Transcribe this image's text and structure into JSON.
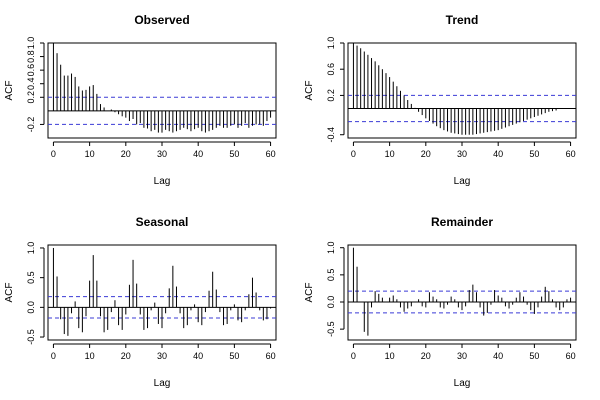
{
  "chart_data": [
    {
      "type": "bar",
      "title": "Observed",
      "xlabel": "Lag",
      "ylabel": "ACF",
      "xlim": [
        -1.5,
        61.5
      ],
      "ylim": [
        -0.4,
        1.0
      ],
      "xticks": [
        0,
        10,
        20,
        30,
        40,
        50,
        60
      ],
      "yticks": [
        -0.2,
        0.2,
        0.4,
        0.6,
        0.8,
        1.0
      ],
      "ytick_labels": [
        "-0.2",
        "0.2",
        "0.4",
        "0.6",
        "0.8",
        "1.0"
      ],
      "conf_band": 0.2,
      "lags": [
        0,
        1,
        2,
        3,
        4,
        5,
        6,
        7,
        8,
        9,
        10,
        11,
        12,
        13,
        14,
        15,
        16,
        17,
        18,
        19,
        20,
        21,
        22,
        23,
        24,
        25,
        26,
        27,
        28,
        29,
        30,
        31,
        32,
        33,
        34,
        35,
        36,
        37,
        38,
        39,
        40,
        41,
        42,
        43,
        44,
        45,
        46,
        47,
        48,
        49,
        50,
        51,
        52,
        53,
        54,
        55,
        56,
        57,
        58,
        59,
        60
      ],
      "values": [
        1.0,
        0.85,
        0.68,
        0.52,
        0.52,
        0.55,
        0.5,
        0.36,
        0.3,
        0.31,
        0.36,
        0.38,
        0.25,
        0.1,
        0.05,
        0.0,
        0.02,
        -0.02,
        -0.05,
        -0.08,
        -0.1,
        -0.15,
        -0.12,
        -0.2,
        -0.18,
        -0.25,
        -0.26,
        -0.3,
        -0.28,
        -0.32,
        -0.32,
        -0.28,
        -0.3,
        -0.32,
        -0.3,
        -0.28,
        -0.25,
        -0.27,
        -0.3,
        -0.27,
        -0.25,
        -0.3,
        -0.32,
        -0.3,
        -0.28,
        -0.25,
        -0.22,
        -0.25,
        -0.25,
        -0.22,
        -0.2,
        -0.25,
        -0.22,
        -0.18,
        -0.25,
        -0.22,
        -0.2,
        -0.2,
        -0.22,
        -0.15,
        -0.1
      ]
    },
    {
      "type": "bar",
      "title": "Trend",
      "xlabel": "Lag",
      "ylabel": "ACF",
      "xlim": [
        -1.5,
        61.5
      ],
      "ylim": [
        -0.45,
        1.0
      ],
      "xticks": [
        0,
        10,
        20,
        30,
        40,
        50,
        60
      ],
      "yticks": [
        -0.4,
        0.2,
        0.6,
        1.0
      ],
      "ytick_labels": [
        "-0.4",
        "0.2",
        "0.6",
        "1.0"
      ],
      "conf_band": 0.2,
      "lags": [
        0,
        1,
        2,
        3,
        4,
        5,
        6,
        7,
        8,
        9,
        10,
        11,
        12,
        13,
        14,
        15,
        16,
        17,
        18,
        19,
        20,
        21,
        22,
        23,
        24,
        25,
        26,
        27,
        28,
        29,
        30,
        31,
        32,
        33,
        34,
        35,
        36,
        37,
        38,
        39,
        40,
        41,
        42,
        43,
        44,
        45,
        46,
        47,
        48,
        49,
        50,
        51,
        52,
        53,
        54,
        55,
        56
      ],
      "values": [
        1.0,
        0.96,
        0.92,
        0.87,
        0.82,
        0.77,
        0.72,
        0.66,
        0.6,
        0.54,
        0.48,
        0.41,
        0.34,
        0.27,
        0.2,
        0.13,
        0.07,
        0.01,
        -0.05,
        -0.1,
        -0.15,
        -0.19,
        -0.23,
        -0.27,
        -0.3,
        -0.33,
        -0.35,
        -0.37,
        -0.38,
        -0.39,
        -0.4,
        -0.4,
        -0.4,
        -0.4,
        -0.39,
        -0.38,
        -0.37,
        -0.36,
        -0.35,
        -0.34,
        -0.33,
        -0.31,
        -0.29,
        -0.27,
        -0.25,
        -0.23,
        -0.21,
        -0.19,
        -0.17,
        -0.15,
        -0.13,
        -0.11,
        -0.09,
        -0.07,
        -0.05,
        -0.04,
        -0.03
      ]
    },
    {
      "type": "bar",
      "title": "Seasonal",
      "xlabel": "Lag",
      "ylabel": "ACF",
      "xlim": [
        -1.5,
        61.5
      ],
      "ylim": [
        -0.55,
        1.05
      ],
      "xticks": [
        0,
        10,
        20,
        30,
        40,
        50,
        60
      ],
      "yticks": [
        -0.5,
        0.0,
        0.5,
        1.0
      ],
      "ytick_labels": [
        "-0.5",
        "0.0",
        "0.5",
        "1.0"
      ],
      "conf_band": 0.18,
      "lags": [
        0,
        1,
        2,
        3,
        4,
        5,
        6,
        7,
        8,
        9,
        10,
        11,
        12,
        13,
        14,
        15,
        16,
        17,
        18,
        19,
        20,
        21,
        22,
        23,
        24,
        25,
        26,
        27,
        28,
        29,
        30,
        31,
        32,
        33,
        34,
        35,
        36,
        37,
        38,
        39,
        40,
        41,
        42,
        43,
        44,
        45,
        46,
        47,
        48,
        49,
        50,
        51,
        52,
        53,
        54,
        55,
        56,
        57,
        58,
        59,
        60
      ],
      "values": [
        1.0,
        0.52,
        -0.2,
        -0.45,
        -0.48,
        -0.1,
        0.1,
        -0.35,
        -0.42,
        -0.15,
        0.45,
        0.88,
        0.45,
        -0.15,
        -0.42,
        -0.38,
        -0.08,
        0.12,
        -0.3,
        -0.38,
        -0.12,
        0.38,
        0.8,
        0.4,
        -0.12,
        -0.38,
        -0.35,
        -0.05,
        0.08,
        -0.28,
        -0.35,
        -0.1,
        0.32,
        0.7,
        0.35,
        -0.1,
        -0.35,
        -0.3,
        -0.05,
        0.05,
        -0.25,
        -0.3,
        -0.08,
        0.28,
        0.6,
        0.3,
        -0.08,
        -0.3,
        -0.28,
        -0.05,
        0.05,
        -0.22,
        -0.25,
        -0.05,
        0.22,
        0.5,
        0.25,
        -0.05,
        -0.22,
        -0.2,
        -0.02
      ]
    },
    {
      "type": "bar",
      "title": "Remainder",
      "xlabel": "Lag",
      "ylabel": "ACF",
      "xlim": [
        -1.5,
        61.5
      ],
      "ylim": [
        -0.7,
        1.05
      ],
      "xticks": [
        0,
        10,
        20,
        30,
        40,
        50,
        60
      ],
      "yticks": [
        -0.5,
        0.0,
        0.5,
        1.0
      ],
      "ytick_labels": [
        "-0.5",
        "0.0",
        "0.5",
        "1.0"
      ],
      "conf_band": 0.2,
      "lags": [
        0,
        1,
        2,
        3,
        4,
        5,
        6,
        7,
        8,
        9,
        10,
        11,
        12,
        13,
        14,
        15,
        16,
        17,
        18,
        19,
        20,
        21,
        22,
        23,
        24,
        25,
        26,
        27,
        28,
        29,
        30,
        31,
        32,
        33,
        34,
        35,
        36,
        37,
        38,
        39,
        40,
        41,
        42,
        43,
        44,
        45,
        46,
        47,
        48,
        49,
        50,
        51,
        52,
        53,
        54,
        55,
        56,
        57,
        58,
        59,
        60
      ],
      "values": [
        1.0,
        0.65,
        0.0,
        -0.55,
        -0.62,
        -0.1,
        0.2,
        0.15,
        0.08,
        0.0,
        0.08,
        0.12,
        0.05,
        -0.1,
        -0.18,
        -0.12,
        -0.08,
        0.0,
        0.05,
        -0.08,
        -0.1,
        0.18,
        0.1,
        0.05,
        -0.1,
        -0.12,
        -0.05,
        0.1,
        0.05,
        -0.1,
        -0.15,
        -0.08,
        0.22,
        0.32,
        0.18,
        -0.1,
        -0.25,
        -0.2,
        -0.05,
        0.22,
        0.12,
        0.08,
        -0.08,
        -0.12,
        -0.05,
        0.08,
        0.18,
        0.1,
        -0.05,
        -0.15,
        -0.22,
        -0.1,
        0.1,
        0.28,
        0.2,
        0.05,
        -0.1,
        -0.15,
        -0.1,
        0.05,
        0.08
      ]
    }
  ]
}
